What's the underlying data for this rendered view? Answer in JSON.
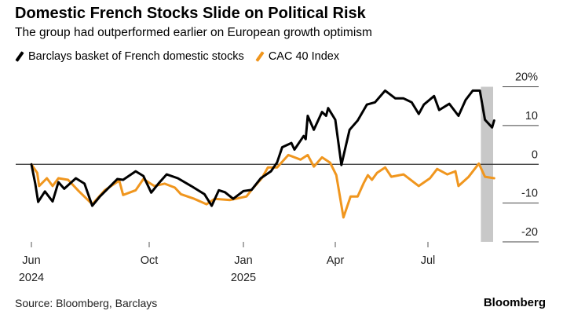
{
  "header": {
    "title": "Domestic French Stocks Slide on Political Risk",
    "subtitle": "The group had outperformed earlier on European growth optimism"
  },
  "footer": {
    "source": "Source: Bloomberg, Barclays",
    "brand": "Bloomberg"
  },
  "chart_data": {
    "type": "line",
    "title": "Domestic French Stocks Slide on Political Risk",
    "xlabel": "",
    "ylabel": "",
    "x_unit": "days since 2024-06-01",
    "ylim": [
      -20,
      20
    ],
    "y_ticks": [
      {
        "value": 20,
        "label": "20%"
      },
      {
        "value": 10,
        "label": "10"
      },
      {
        "value": 0,
        "label": "0"
      },
      {
        "value": -10,
        "label": "-10"
      },
      {
        "value": -20,
        "label": "-20"
      }
    ],
    "x_ticks": [
      {
        "day": 0,
        "label": "Jun",
        "year": "2024"
      },
      {
        "day": 122,
        "label": "Oct",
        "year": ""
      },
      {
        "day": 214,
        "label": "Jan",
        "year": "2025"
      },
      {
        "day": 304,
        "label": "Apr",
        "year": ""
      },
      {
        "day": 395,
        "label": "Jul",
        "year": ""
      }
    ],
    "highlight_range": [
      447,
      459
    ],
    "highlight_color": "#c8c8c8",
    "legend_position": "top-left",
    "series": [
      {
        "name": "Barclays basket of French domestic stocks",
        "color": "#000000",
        "points": [
          [
            0,
            0
          ],
          [
            4,
            -5
          ],
          [
            7,
            -9.7
          ],
          [
            14,
            -7
          ],
          [
            22,
            -9.6
          ],
          [
            28,
            -4.6
          ],
          [
            34,
            -6.3
          ],
          [
            46,
            -3.6
          ],
          [
            55,
            -5
          ],
          [
            63,
            -10.7
          ],
          [
            71,
            -8.3
          ],
          [
            79,
            -6.3
          ],
          [
            89,
            -3.8
          ],
          [
            95,
            -4
          ],
          [
            108,
            -1.8
          ],
          [
            116,
            -3
          ],
          [
            124,
            -7.3
          ],
          [
            131,
            -5
          ],
          [
            139,
            -2.6
          ],
          [
            150,
            -3.6
          ],
          [
            163,
            -5.6
          ],
          [
            176,
            -7.7
          ],
          [
            183,
            -10.7
          ],
          [
            190,
            -6.7
          ],
          [
            196,
            -7.2
          ],
          [
            204,
            -8.9
          ],
          [
            214,
            -6.9
          ],
          [
            222,
            -6.6
          ],
          [
            231,
            -3.6
          ],
          [
            241,
            -1.8
          ],
          [
            247,
            0.5
          ],
          [
            252,
            4.4
          ],
          [
            261,
            5.5
          ],
          [
            264,
            3.8
          ],
          [
            273,
            7.3
          ],
          [
            275,
            6.5
          ],
          [
            277,
            12.5
          ],
          [
            283,
            8.9
          ],
          [
            291,
            13.5
          ],
          [
            295,
            12.5
          ],
          [
            297,
            14.5
          ],
          [
            304,
            11.5
          ],
          [
            310,
            -0.2
          ],
          [
            314,
            4.4
          ],
          [
            318,
            8.9
          ],
          [
            326,
            11.3
          ],
          [
            335,
            15.4
          ],
          [
            343,
            16
          ],
          [
            353,
            19
          ],
          [
            363,
            17
          ],
          [
            371,
            17
          ],
          [
            379,
            16
          ],
          [
            386,
            13
          ],
          [
            391,
            15.4
          ],
          [
            401,
            17.6
          ],
          [
            406,
            14
          ],
          [
            416,
            15.6
          ],
          [
            425,
            12.5
          ],
          [
            432,
            16.6
          ],
          [
            439,
            19
          ],
          [
            446,
            19
          ],
          [
            451,
            11.5
          ],
          [
            458,
            9.5
          ],
          [
            460,
            11.3
          ]
        ]
      },
      {
        "name": "CAC 40 Index",
        "color": "#f0961e",
        "points": [
          [
            0,
            0
          ],
          [
            6,
            -2.2
          ],
          [
            8,
            -5.6
          ],
          [
            16,
            -3.6
          ],
          [
            22,
            -5.6
          ],
          [
            28,
            -3.6
          ],
          [
            38,
            -4
          ],
          [
            49,
            -6.9
          ],
          [
            63,
            -10.3
          ],
          [
            76,
            -6.7
          ],
          [
            91,
            -4.2
          ],
          [
            95,
            -7.9
          ],
          [
            108,
            -6.7
          ],
          [
            116,
            -3.8
          ],
          [
            127,
            -5.6
          ],
          [
            137,
            -5
          ],
          [
            147,
            -6
          ],
          [
            153,
            -7.7
          ],
          [
            166,
            -8.9
          ],
          [
            178,
            -10.3
          ],
          [
            186,
            -8.9
          ],
          [
            201,
            -9.2
          ],
          [
            217,
            -8.3
          ],
          [
            222,
            -6.6
          ],
          [
            232,
            -3.6
          ],
          [
            238,
            -0.8
          ],
          [
            247,
            -0.8
          ],
          [
            258,
            2.4
          ],
          [
            270,
            1.2
          ],
          [
            277,
            2.4
          ],
          [
            283,
            -0.6
          ],
          [
            291,
            1.8
          ],
          [
            299,
            0.4
          ],
          [
            305,
            -2.8
          ],
          [
            312,
            -13.7
          ],
          [
            319,
            -8.3
          ],
          [
            326,
            -8.3
          ],
          [
            332,
            -4.8
          ],
          [
            336,
            -2.8
          ],
          [
            340,
            -4
          ],
          [
            345,
            -2.2
          ],
          [
            353,
            -0.8
          ],
          [
            359,
            -3.2
          ],
          [
            371,
            -2.6
          ],
          [
            386,
            -5.6
          ],
          [
            397,
            -3.6
          ],
          [
            404,
            -1.2
          ],
          [
            414,
            -2.6
          ],
          [
            422,
            -1.8
          ],
          [
            425,
            -5.6
          ],
          [
            435,
            -3.2
          ],
          [
            445,
            0.2
          ],
          [
            451,
            -3.2
          ],
          [
            460,
            -3.6
          ]
        ]
      }
    ]
  }
}
